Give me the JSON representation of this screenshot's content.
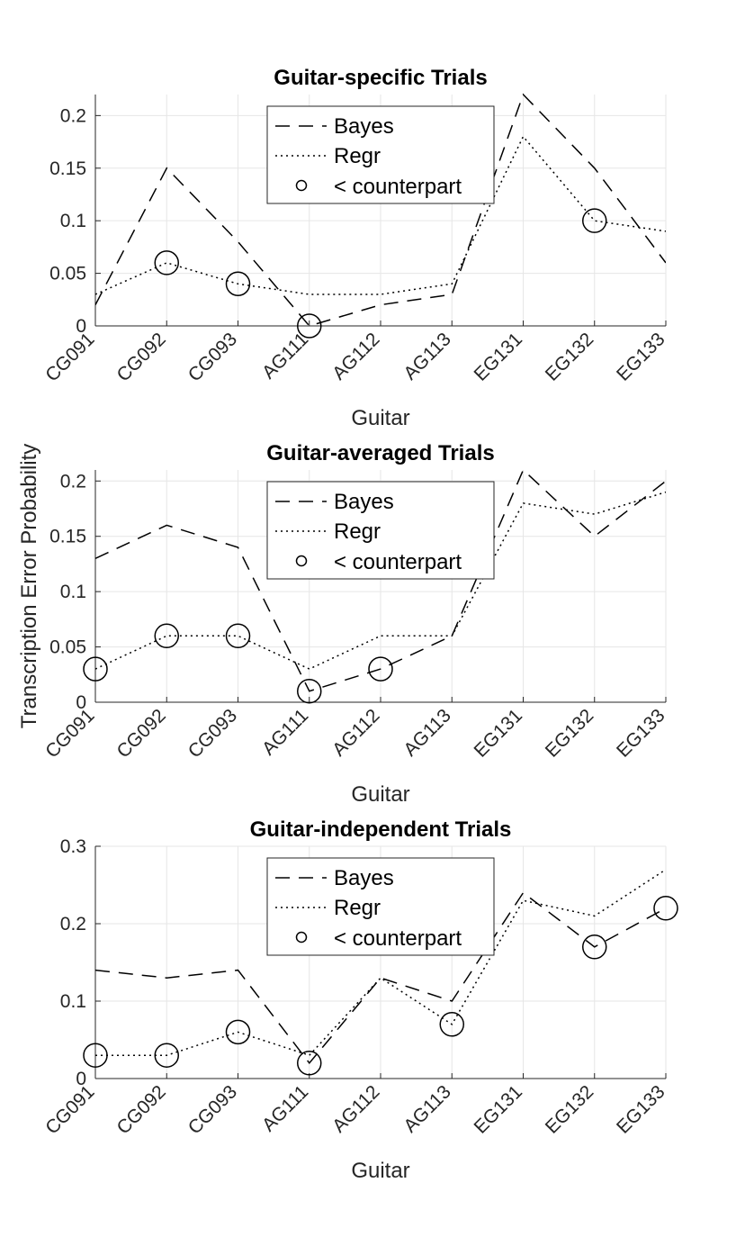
{
  "figure": {
    "ylabel": "Transcription Error Probability"
  },
  "legend": {
    "bayes": "Bayes",
    "regr": "Regr",
    "counterpart": "< counterpart"
  },
  "chart_data": [
    {
      "type": "line",
      "title": "Guitar-specific Trials",
      "xlabel": "Guitar",
      "categories": [
        "CG091",
        "CG092",
        "CG093",
        "AG111",
        "AG112",
        "AG113",
        "EG131",
        "EG132",
        "EG133"
      ],
      "ylim": [
        0,
        0.22
      ],
      "yticks": [
        0,
        0.05,
        0.1,
        0.15,
        0.2
      ],
      "ytick_labels": [
        "0",
        "0.05",
        "0.1",
        "0.15",
        "0.2"
      ],
      "grid": true,
      "legend_position": "top-center",
      "series": [
        {
          "name": "Bayes",
          "values": [
            0.02,
            0.15,
            0.08,
            0.0,
            0.02,
            0.03,
            0.22,
            0.15,
            0.06
          ]
        },
        {
          "name": "Regr",
          "values": [
            0.03,
            0.06,
            0.04,
            0.03,
            0.03,
            0.04,
            0.18,
            0.1,
            0.09
          ]
        }
      ],
      "markers": [
        {
          "x": "CG092",
          "y": 0.06
        },
        {
          "x": "CG093",
          "y": 0.04
        },
        {
          "x": "AG111",
          "y": 0.0
        },
        {
          "x": "EG132",
          "y": 0.1
        }
      ]
    },
    {
      "type": "line",
      "title": "Guitar-averaged Trials",
      "xlabel": "Guitar",
      "categories": [
        "CG091",
        "CG092",
        "CG093",
        "AG111",
        "AG112",
        "AG113",
        "EG131",
        "EG132",
        "EG133"
      ],
      "ylim": [
        0,
        0.21
      ],
      "yticks": [
        0,
        0.05,
        0.1,
        0.15,
        0.2
      ],
      "ytick_labels": [
        "0",
        "0.05",
        "0.1",
        "0.15",
        "0.2"
      ],
      "grid": true,
      "legend_position": "top-center",
      "series": [
        {
          "name": "Bayes",
          "values": [
            0.13,
            0.16,
            0.14,
            0.01,
            0.03,
            0.06,
            0.21,
            0.15,
            0.2
          ]
        },
        {
          "name": "Regr",
          "values": [
            0.03,
            0.06,
            0.06,
            0.03,
            0.06,
            0.06,
            0.18,
            0.17,
            0.19
          ]
        }
      ],
      "markers": [
        {
          "x": "CG091",
          "y": 0.03
        },
        {
          "x": "CG092",
          "y": 0.06
        },
        {
          "x": "CG093",
          "y": 0.06
        },
        {
          "x": "AG111",
          "y": 0.01
        },
        {
          "x": "AG112",
          "y": 0.03
        }
      ]
    },
    {
      "type": "line",
      "title": "Guitar-independent Trials",
      "xlabel": "Guitar",
      "categories": [
        "CG091",
        "CG092",
        "CG093",
        "AG111",
        "AG112",
        "AG113",
        "EG131",
        "EG132",
        "EG133"
      ],
      "ylim": [
        0,
        0.3
      ],
      "yticks": [
        0,
        0.1,
        0.2,
        0.3
      ],
      "ytick_labels": [
        "0",
        "0.1",
        "0.2",
        "0.3"
      ],
      "grid": true,
      "legend_position": "top-center",
      "series": [
        {
          "name": "Bayes",
          "values": [
            0.14,
            0.13,
            0.14,
            0.02,
            0.13,
            0.1,
            0.24,
            0.17,
            0.22
          ]
        },
        {
          "name": "Regr",
          "values": [
            0.03,
            0.03,
            0.06,
            0.03,
            0.13,
            0.07,
            0.23,
            0.21,
            0.27
          ]
        }
      ],
      "markers": [
        {
          "x": "CG091",
          "y": 0.03
        },
        {
          "x": "CG092",
          "y": 0.03
        },
        {
          "x": "CG093",
          "y": 0.06
        },
        {
          "x": "AG111",
          "y": 0.02
        },
        {
          "x": "AG113",
          "y": 0.07
        },
        {
          "x": "EG132",
          "y": 0.17
        },
        {
          "x": "EG133",
          "y": 0.22
        }
      ]
    }
  ]
}
